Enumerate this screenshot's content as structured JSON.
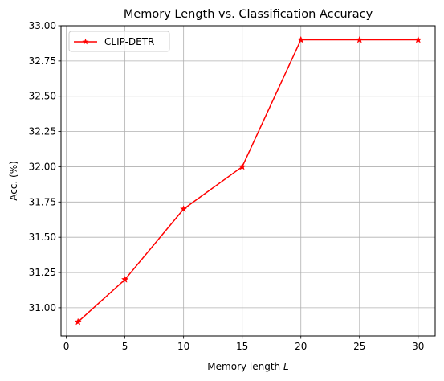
{
  "chart_data": {
    "type": "line",
    "title": "Memory Length vs. Classification Accuracy",
    "xlabel": "Memory length",
    "xlabel_var": "L",
    "ylabel": "Acc. (%)",
    "xlim": [
      -0.45,
      31.45
    ],
    "ylim": [
      30.8,
      33.0
    ],
    "xticks": [
      0,
      5,
      10,
      15,
      20,
      25,
      30
    ],
    "xtick_labels": [
      "0",
      "5",
      "10",
      "15",
      "20",
      "25",
      "30"
    ],
    "yticks": [
      31.0,
      31.25,
      31.5,
      31.75,
      32.0,
      32.25,
      32.5,
      32.75,
      33.0
    ],
    "ytick_labels": [
      "31.00",
      "31.25",
      "31.50",
      "31.75",
      "32.00",
      "32.25",
      "32.50",
      "32.75",
      "33.00"
    ],
    "grid": true,
    "legend_position": "top-left",
    "series": [
      {
        "name": "CLIP-DETR",
        "color": "#ff0000",
        "marker": "star",
        "x": [
          1,
          5,
          10,
          15,
          20,
          25,
          30
        ],
        "y": [
          30.9,
          31.2,
          31.7,
          32.0,
          32.9,
          32.9,
          32.9
        ]
      }
    ]
  }
}
